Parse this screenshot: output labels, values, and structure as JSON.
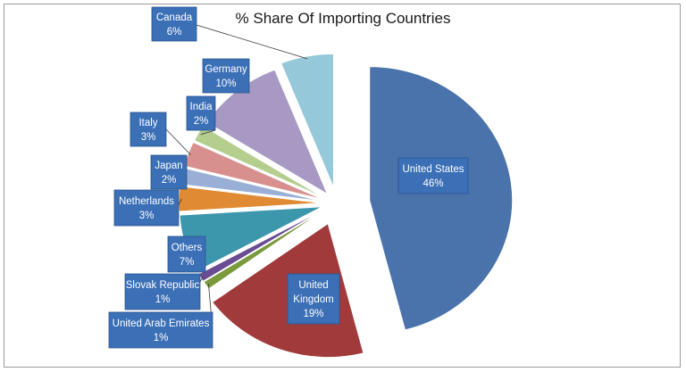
{
  "chart_data": {
    "type": "pie",
    "title": "% Share Of Importing Countries",
    "slices": [
      {
        "name": "United States",
        "label": "46%",
        "value": 46,
        "color": "#4a73ab"
      },
      {
        "name": "United Kingdom",
        "label": "19%",
        "value": 19,
        "color": "#a13b3b"
      },
      {
        "name": "United Arab Emirates",
        "label": "1%",
        "value": 1,
        "color": "#7a9a3c"
      },
      {
        "name": "Slovak Republic",
        "label": "1%",
        "value": 1,
        "color": "#6a4c93"
      },
      {
        "name": "Others",
        "label": "7%",
        "value": 7,
        "color": "#3d97ac"
      },
      {
        "name": "Netherlands",
        "label": "3%",
        "value": 3,
        "color": "#e08b33"
      },
      {
        "name": "Japan",
        "label": "2%",
        "value": 2,
        "color": "#9aafd6"
      },
      {
        "name": "Italy",
        "label": "3%",
        "value": 3,
        "color": "#d8908f"
      },
      {
        "name": "India",
        "label": "2%",
        "value": 2,
        "color": "#b5ce8e"
      },
      {
        "name": "Germany",
        "label": "10%",
        "value": 10,
        "color": "#a899c4"
      },
      {
        "name": "Canada",
        "label": "6%",
        "value": 6,
        "color": "#95c8d9"
      }
    ]
  }
}
